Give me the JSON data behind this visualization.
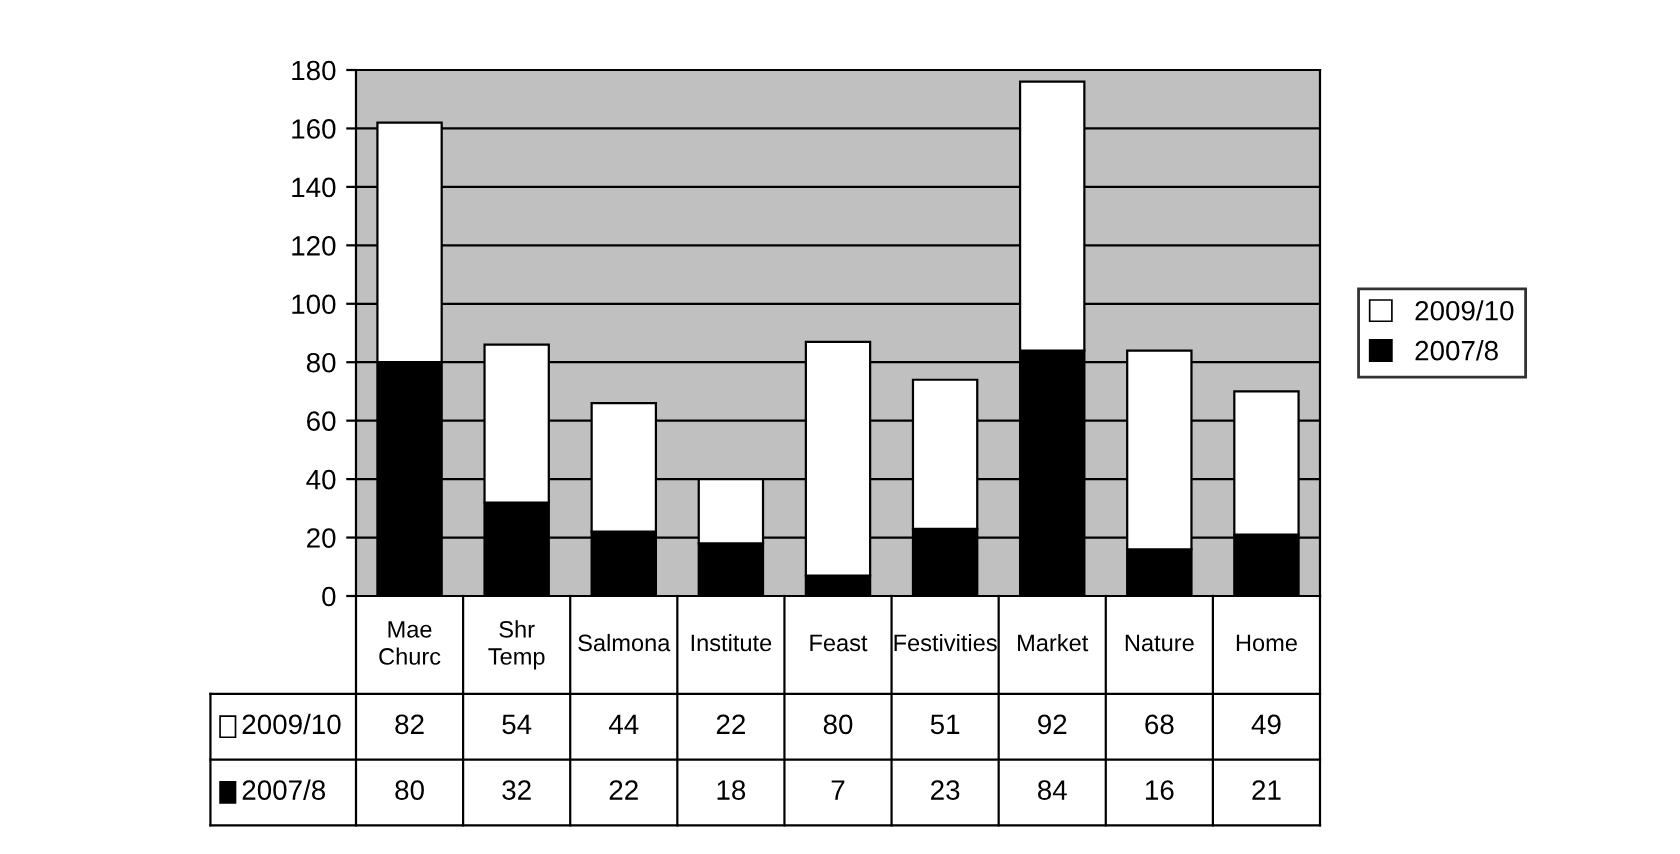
{
  "chart_data": {
    "type": "bar",
    "stacked": true,
    "categories": [
      "Mae Churc",
      "Shr Temp",
      "Salmona",
      "Institute",
      "Feast",
      "Festivities",
      "Market",
      "Nature",
      "Home"
    ],
    "series": [
      {
        "name": "2007/8",
        "color": "#000000",
        "values": [
          80,
          32,
          22,
          18,
          7,
          23,
          84,
          16,
          21
        ]
      },
      {
        "name": "2009/10",
        "color": "#ffffff",
        "values": [
          82,
          54,
          44,
          22,
          80,
          51,
          92,
          68,
          49
        ]
      }
    ],
    "ylim": [
      0,
      180
    ],
    "yticks": [
      0,
      20,
      40,
      60,
      80,
      100,
      120,
      140,
      160,
      180
    ],
    "grid": "y",
    "legend": "right",
    "data_labels": true
  }
}
